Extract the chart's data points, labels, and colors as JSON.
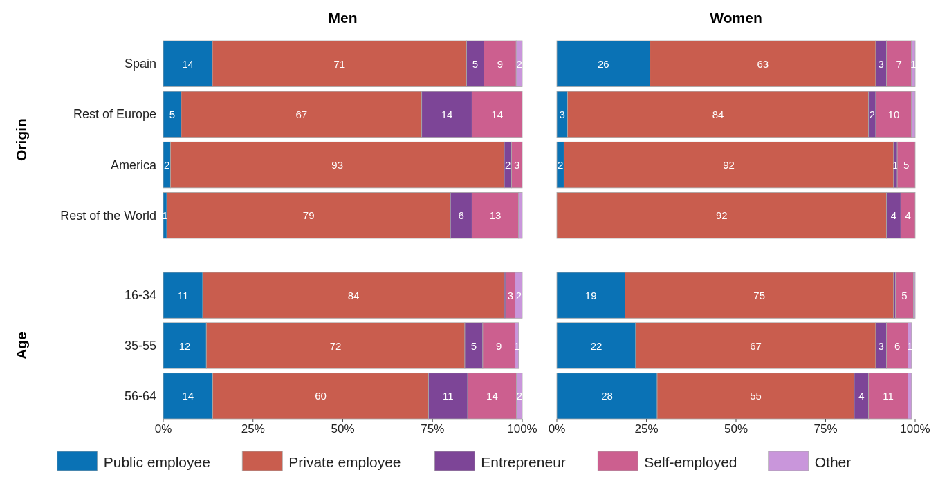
{
  "chart_data": [
    {
      "type": "bar",
      "orientation": "horizontal",
      "stacked": true,
      "title": "Men",
      "ylabel": "Origin",
      "tick_labels": "y",
      "legend": "bottom",
      "categories": [
        "Spain",
        "Rest of Europe",
        "America",
        "Rest of the World"
      ],
      "xlim": [
        0,
        100
      ],
      "series": [
        {
          "name": "Public employee",
          "color": "#0a72b5",
          "values": [
            13.7,
            5,
            2,
            1
          ],
          "value_labels": [
            "14",
            "5",
            "2",
            "1"
          ]
        },
        {
          "name": "Private employee",
          "color": "#c95d4e",
          "values": [
            70.8,
            67,
            93,
            79
          ],
          "value_labels": [
            "71",
            "67",
            "93",
            "79"
          ]
        },
        {
          "name": "Entrepreneur",
          "color": "#7d4597",
          "values": [
            4.8,
            14,
            2,
            6
          ],
          "value_labels": [
            "5",
            "14",
            "2",
            "6"
          ]
        },
        {
          "name": "Self-employed",
          "color": "#cc5f8f",
          "values": [
            9,
            14,
            3,
            13
          ],
          "value_labels": [
            "9",
            "14",
            "3",
            "13"
          ]
        },
        {
          "name": "Other",
          "color": "#c996db",
          "values": [
            1.7,
            0,
            0,
            1
          ],
          "value_labels": [
            "2",
            null,
            null,
            null
          ]
        }
      ]
    },
    {
      "type": "bar",
      "orientation": "horizontal",
      "stacked": true,
      "title": "Women",
      "tick_labels": false,
      "categories": [
        null,
        null,
        null,
        null
      ],
      "xlim": [
        0,
        100
      ],
      "series": [
        {
          "color": "#0a72b5",
          "values": [
            26,
            3,
            2,
            0
          ],
          "value_labels": [
            "26",
            "3",
            "2",
            null
          ]
        },
        {
          "color": "#c95d4e",
          "values": [
            63,
            84,
            92,
            92
          ],
          "value_labels": [
            "63",
            "84",
            "92",
            "92"
          ]
        },
        {
          "color": "#7d4597",
          "values": [
            3,
            2,
            1,
            4
          ],
          "value_labels": [
            "3",
            "2",
            "1",
            "4"
          ]
        },
        {
          "color": "#cc5f8f",
          "values": [
            7,
            10,
            5,
            4
          ],
          "value_labels": [
            "7",
            "10",
            "5",
            "4"
          ]
        },
        {
          "color": "#c996db",
          "values": [
            1,
            1,
            0,
            0
          ],
          "value_labels": [
            "1",
            null,
            null,
            null
          ]
        }
      ]
    },
    {
      "type": "bar",
      "orientation": "horizontal",
      "stacked": true,
      "ylabel": "Age",
      "categories": [
        "16-34",
        "35-55",
        "56-64"
      ],
      "xlim": [
        0,
        100
      ],
      "xticks": [
        {
          "value": 0,
          "label": "0%"
        },
        {
          "value": 25,
          "label": "25%"
        },
        {
          "value": 50,
          "label": "50%"
        },
        {
          "value": 75,
          "label": "75%"
        },
        {
          "value": 100,
          "label": "100%"
        }
      ],
      "series": [
        {
          "color": "#0a72b5",
          "values": [
            11,
            12,
            13.8
          ],
          "value_labels": [
            "11",
            "12",
            "14"
          ]
        },
        {
          "color": "#c95d4e",
          "values": [
            84,
            72,
            60.1
          ],
          "value_labels": [
            "84",
            "72",
            "60"
          ]
        },
        {
          "color": "#7d4597",
          "values": [
            0.4,
            5,
            10.9
          ],
          "value_labels": [
            null,
            "5",
            "11"
          ]
        },
        {
          "color": "#cc5f8f",
          "values": [
            2.6,
            9,
            13.6
          ],
          "value_labels": [
            "3",
            "9",
            "14"
          ]
        },
        {
          "color": "#c996db",
          "values": [
            2,
            1,
            1.6
          ],
          "value_labels": [
            "2",
            "1",
            "2"
          ]
        }
      ]
    },
    {
      "type": "bar",
      "orientation": "horizontal",
      "stacked": true,
      "tick_labels": "x",
      "categories": [
        null,
        null,
        null
      ],
      "xlim": [
        0,
        100
      ],
      "xticks": [
        {
          "value": 0,
          "label": "0%"
        },
        {
          "value": 25,
          "label": "25%"
        },
        {
          "value": 50,
          "label": "50%"
        },
        {
          "value": 75,
          "label": "75%"
        },
        {
          "value": 100,
          "label": "100%"
        }
      ],
      "series": [
        {
          "color": "#0a72b5",
          "values": [
            19,
            22,
            28
          ],
          "value_labels": [
            "19",
            "22",
            "28"
          ]
        },
        {
          "color": "#c95d4e",
          "values": [
            75,
            67,
            55
          ],
          "value_labels": [
            "75",
            "67",
            "55"
          ]
        },
        {
          "color": "#7d4597",
          "values": [
            0.5,
            3,
            4
          ],
          "value_labels": [
            null,
            "3",
            "4"
          ]
        },
        {
          "color": "#cc5f8f",
          "values": [
            5,
            6,
            11
          ],
          "value_labels": [
            "5",
            "6",
            "11"
          ]
        },
        {
          "color": "#c996db",
          "values": [
            0.5,
            1,
            1
          ],
          "value_labels": [
            null,
            "1",
            null
          ]
        }
      ]
    }
  ]
}
